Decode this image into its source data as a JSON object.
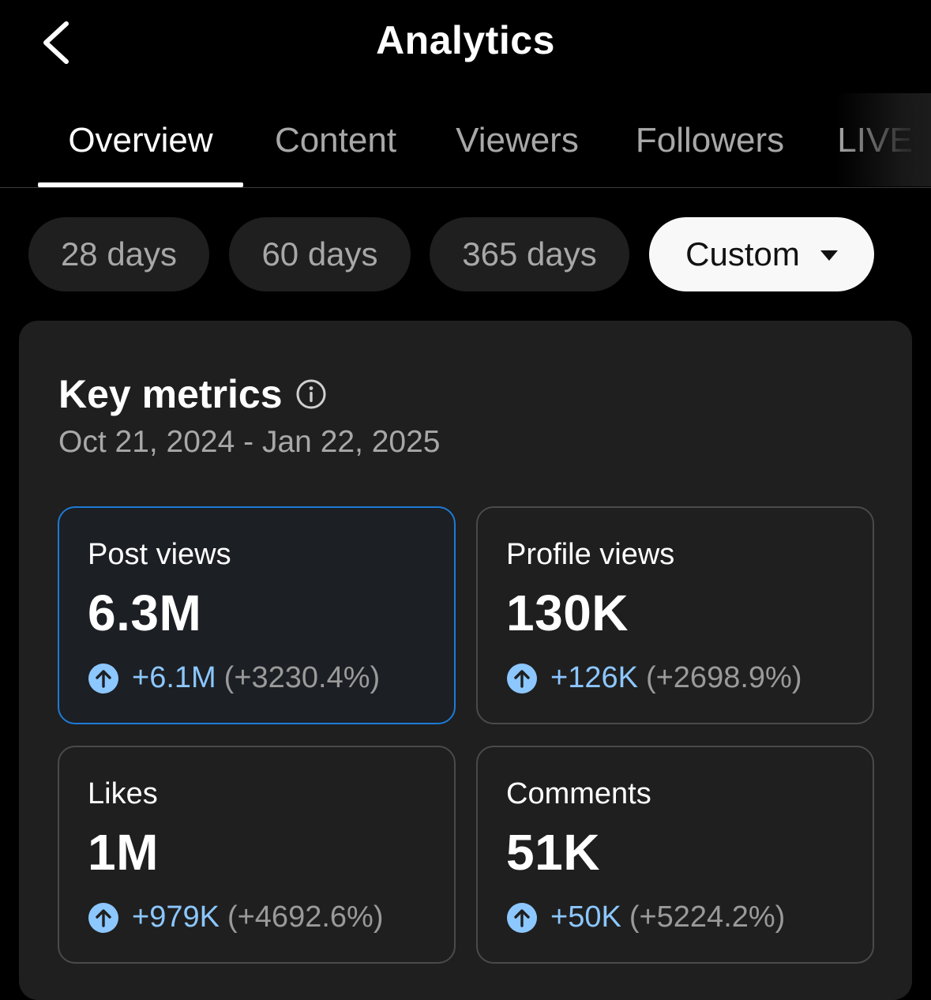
{
  "header": {
    "title": "Analytics",
    "back_icon": "chevron-left-icon"
  },
  "tabs": [
    {
      "label": "Overview",
      "active": true
    },
    {
      "label": "Content",
      "active": false
    },
    {
      "label": "Viewers",
      "active": false
    },
    {
      "label": "Followers",
      "active": false
    },
    {
      "label": "LIVE",
      "active": false
    }
  ],
  "ranges": [
    {
      "label": "28 days",
      "selected": false
    },
    {
      "label": "60 days",
      "selected": false
    },
    {
      "label": "365 days",
      "selected": false
    },
    {
      "label": "Custom",
      "selected": true
    }
  ],
  "key_metrics": {
    "title": "Key metrics",
    "date_range": "Oct 21, 2024 - Jan 22, 2025",
    "metrics": [
      {
        "label": "Post views",
        "value": "6.3M",
        "delta": "+6.1M",
        "delta_pct": "(+3230.4%)",
        "selected": true
      },
      {
        "label": "Profile views",
        "value": "130K",
        "delta": "+126K",
        "delta_pct": "(+2698.9%)",
        "selected": false
      },
      {
        "label": "Likes",
        "value": "1M",
        "delta": "+979K",
        "delta_pct": "(+4692.6%)",
        "selected": false
      },
      {
        "label": "Comments",
        "value": "51K",
        "delta": "+50K",
        "delta_pct": "(+5224.2%)",
        "selected": false
      }
    ]
  },
  "colors": {
    "background": "#000000",
    "card": "#1f1f1f",
    "accent_border": "#1e7ad6",
    "positive": "#8cc7ff",
    "muted": "#a8a8a8"
  }
}
